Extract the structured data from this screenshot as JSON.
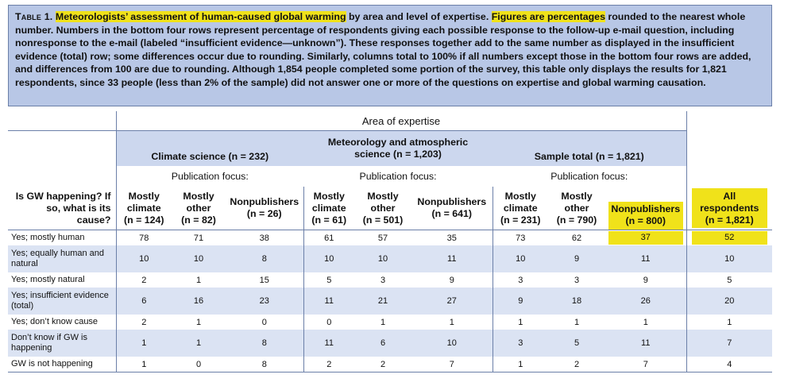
{
  "caption": {
    "label": "Table 1.",
    "seg1": "Meteorologists’ assessment of human-caused global warming",
    "seg2": " by area and level of expertise. ",
    "seg3": "Figures are percentages",
    "seg4": " rounded to the nearest whole number. Numbers in the bottom four rows represent percentage of respondents giving each possible response to the follow-up e-mail question, including nonresponse to the e-mail (labeled “insufficient evidence—unknown”). These responses together add to the same number as displayed in the insufficient evidence (total) row; some differences occur due to rounding. Similarly, columns total to 100% if all numbers except those in the bottom four rows are added, and differences from 100 are due to rounding. Although 1,854 people completed some portion of the survey, this table only displays the results for 1,821 respondents, since 33 people (less than 2% of the sample) did not answer one or more of the questions on expertise and global warming causation."
  },
  "table": {
    "area_header": "Area of expertise",
    "groups": [
      {
        "title": "Climate science (n = 232)"
      },
      {
        "title": "Meteorology and atmospheric science (n = 1,203)"
      },
      {
        "title": "Sample total (n = 1,821)"
      }
    ],
    "pub_focus": "Publication focus:",
    "row_header": "Is GW happening? If so, what is its cause?",
    "columns": [
      {
        "l1": "Mostly",
        "l2": "climate",
        "l3": "(n = 124)"
      },
      {
        "l1": "Mostly",
        "l2": "other",
        "l3": "(n = 82)"
      },
      {
        "l1": "",
        "l2": "Nonpublishers",
        "l3": "(n = 26)"
      },
      {
        "l1": "Mostly",
        "l2": "climate",
        "l3": "(n = 61)"
      },
      {
        "l1": "Mostly",
        "l2": "other",
        "l3": "(n = 501)"
      },
      {
        "l1": "",
        "l2": "Nonpublishers",
        "l3": "(n = 641)"
      },
      {
        "l1": "Mostly",
        "l2": "climate",
        "l3": "(n = 231)"
      },
      {
        "l1": "Mostly",
        "l2": "other",
        "l3": "(n = 790)"
      },
      {
        "l1": "",
        "l2": "Nonpublishers",
        "l3": "(n = 800)"
      },
      {
        "l1": "All",
        "l2": "respondents",
        "l3": "(n = 1,821)"
      }
    ],
    "rows": [
      {
        "label": "Yes; mostly human",
        "values": [
          "78",
          "71",
          "38",
          "61",
          "57",
          "35",
          "73",
          "62",
          "37",
          "52"
        ]
      },
      {
        "label": "Yes; equally human and natural",
        "values": [
          "10",
          "10",
          "8",
          "10",
          "10",
          "11",
          "10",
          "9",
          "11",
          "10"
        ]
      },
      {
        "label": "Yes; mostly natural",
        "values": [
          "2",
          "1",
          "15",
          "5",
          "3",
          "9",
          "3",
          "3",
          "9",
          "5"
        ]
      },
      {
        "label": "Yes; insufficient evidence (total)",
        "values": [
          "6",
          "16",
          "23",
          "11",
          "21",
          "27",
          "9",
          "18",
          "26",
          "20"
        ]
      },
      {
        "label": "Yes; don’t know cause",
        "values": [
          "2",
          "1",
          "0",
          "0",
          "1",
          "1",
          "1",
          "1",
          "1",
          "1"
        ]
      },
      {
        "label": "Don’t know if GW is happening",
        "values": [
          "1",
          "1",
          "8",
          "11",
          "6",
          "10",
          "3",
          "5",
          "11",
          "7"
        ]
      },
      {
        "label": "GW is not happening",
        "values": [
          "1",
          "0",
          "8",
          "2",
          "2",
          "7",
          "1",
          "2",
          "7",
          "4"
        ]
      }
    ]
  },
  "colors": {
    "caption_bg": "#b8c7e6",
    "band_bg": "#dbe3f3",
    "highlight": "#f0e21a"
  }
}
